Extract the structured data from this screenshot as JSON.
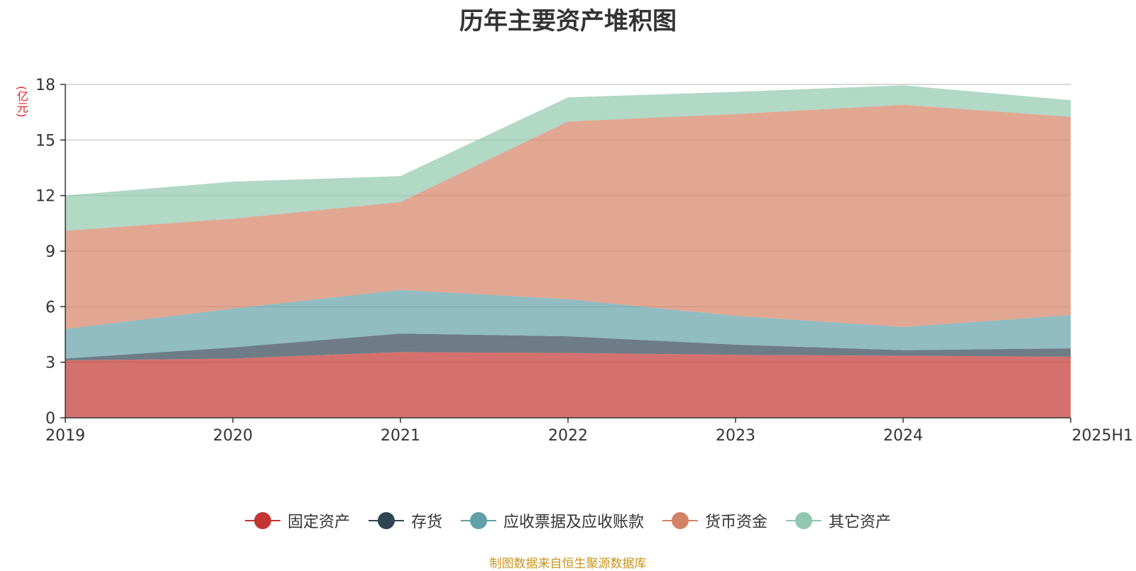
{
  "chart_data": {
    "type": "area",
    "stacked": true,
    "title": "历年主要资产堆积图",
    "ylabel": "(亿元)",
    "xlabel": "",
    "categories": [
      "2019",
      "2020",
      "2021",
      "2022",
      "2023",
      "2024",
      "2025H1"
    ],
    "ylim": [
      0,
      18
    ],
    "yticks": [
      0,
      3,
      6,
      9,
      12,
      15,
      18
    ],
    "grid": true,
    "legend_position": "bottom",
    "series": [
      {
        "name": "固定资产",
        "color": "#c23531",
        "values": [
          3.1,
          3.2,
          3.55,
          3.5,
          3.4,
          3.35,
          3.3
        ]
      },
      {
        "name": "存货",
        "color": "#2f4554",
        "values": [
          0.1,
          0.6,
          1.0,
          0.9,
          0.55,
          0.3,
          0.45
        ]
      },
      {
        "name": "应收票据及应收账款",
        "color": "#61a0a8",
        "values": [
          1.6,
          2.1,
          2.35,
          2.0,
          1.55,
          1.25,
          1.8
        ]
      },
      {
        "name": "货币资金",
        "color": "#d48265",
        "values": [
          5.3,
          4.85,
          4.75,
          9.6,
          10.9,
          12.0,
          10.7
        ]
      },
      {
        "name": "其它资产",
        "color": "#91c7ae",
        "values": [
          1.9,
          2.0,
          1.4,
          1.3,
          1.2,
          1.05,
          0.9
        ]
      }
    ]
  },
  "footer": {
    "source": "制图数据来自恒生聚源数据库"
  }
}
